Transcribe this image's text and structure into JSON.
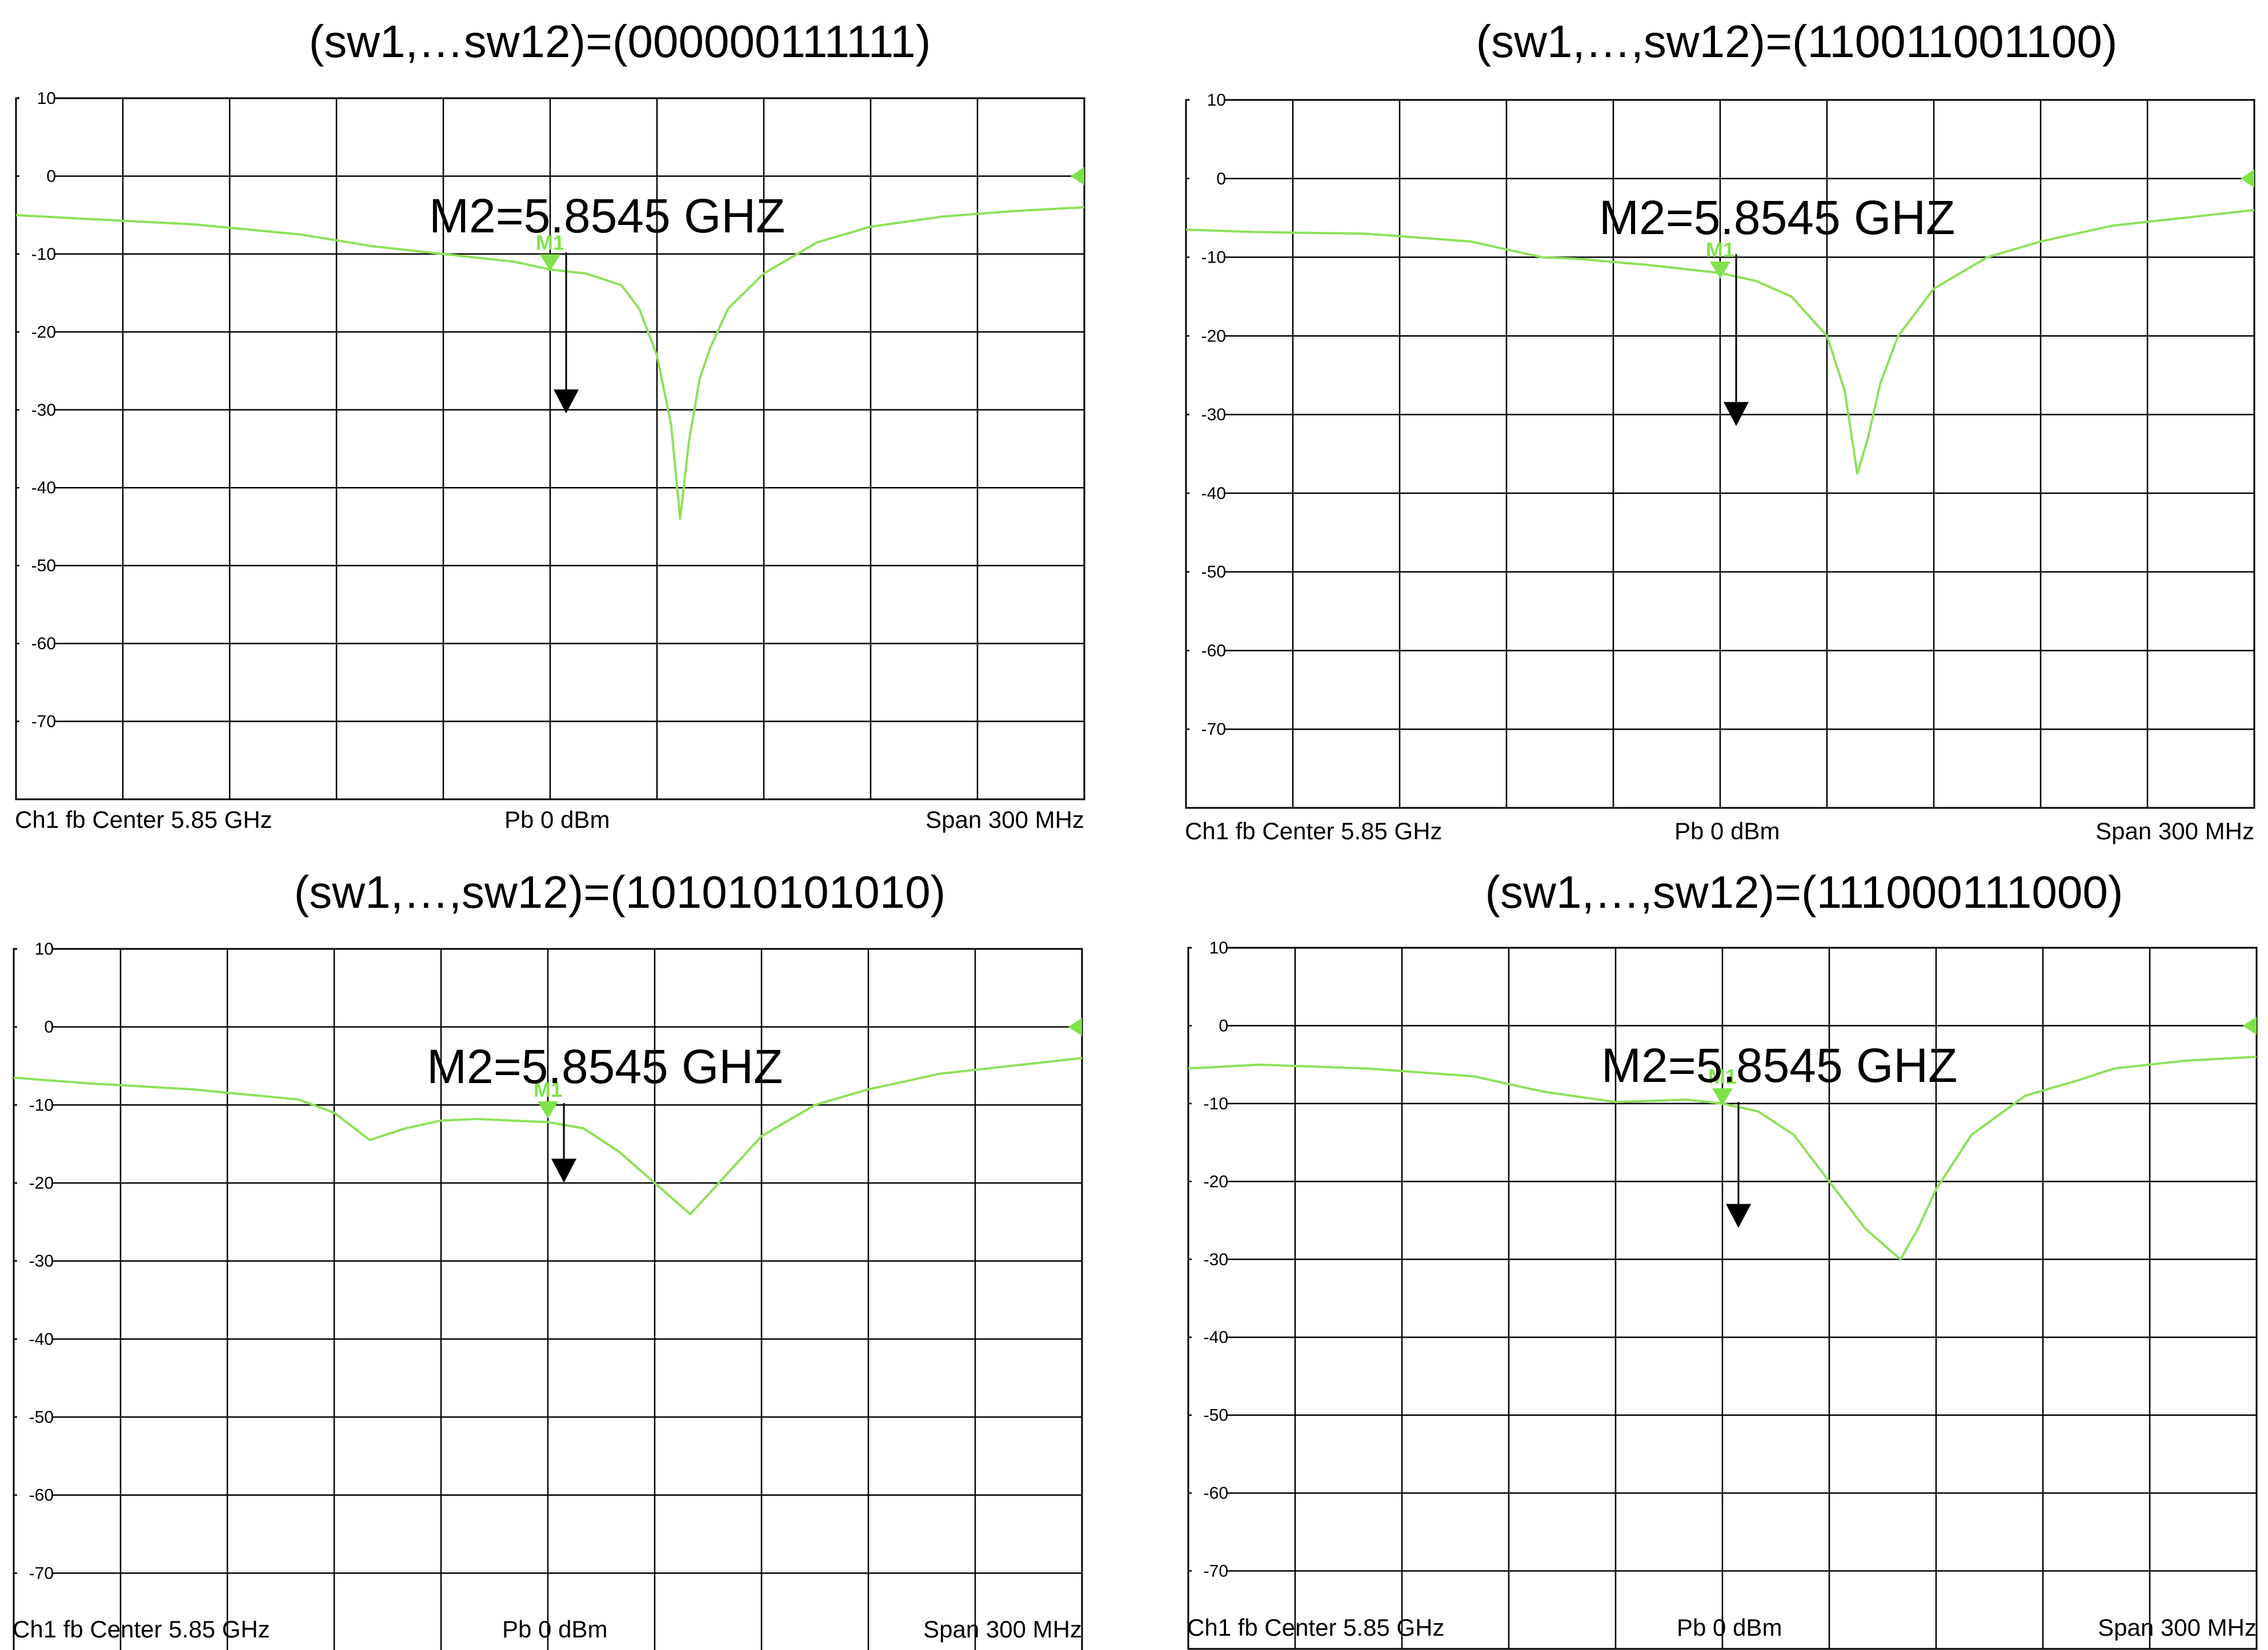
{
  "colors": {
    "trace": "#8ee05a",
    "marker": "#7fe24a",
    "grid": "#000000",
    "annotation": "#000000"
  },
  "chart_data": [
    {
      "type": "line",
      "title": "(sw1,…sw12)=(000000111111)",
      "xlim": [
        5.7,
        6.0
      ],
      "ylim": [
        -80,
        10
      ],
      "yticks": [
        10,
        0,
        -10,
        -20,
        -30,
        -40,
        -50,
        -60,
        -70
      ],
      "grid": true,
      "status": {
        "channel": "Ch1  fb  Center  5.85 GHz",
        "power": "Pb   0 dBm",
        "span": "Span  300 MHz"
      },
      "marker_m1": {
        "label": "M1",
        "x": 5.85,
        "y": -11.5
      },
      "marker_m2": {
        "label": "M2=5.8545 GHZ",
        "x": 5.8545,
        "y": -29
      },
      "series": [
        {
          "x": [
            5.7,
            5.72,
            5.75,
            5.78,
            5.8,
            5.82,
            5.84,
            5.85,
            5.86,
            5.87,
            5.875,
            5.88,
            5.884,
            5.8865,
            5.889,
            5.892,
            5.895,
            5.9,
            5.91,
            5.925,
            5.94,
            5.96,
            5.98,
            6.0
          ],
          "values": [
            -5,
            -5.5,
            -6.2,
            -7.5,
            -9,
            -10,
            -11,
            -12,
            -12.5,
            -14,
            -17,
            -23,
            -32,
            -44,
            -34,
            -26,
            -22,
            -17,
            -12.5,
            -8.5,
            -6.5,
            -5.2,
            -4.5,
            -4
          ]
        }
      ]
    },
    {
      "type": "line",
      "title": "(sw1,…,sw12)=(110011001100)",
      "xlim": [
        5.7,
        6.0
      ],
      "ylim": [
        -80,
        10
      ],
      "yticks": [
        10,
        0,
        -10,
        -20,
        -30,
        -40,
        -50,
        -60,
        -70
      ],
      "grid": true,
      "status": {
        "channel": "Ch1  fb  Center  5.85 GHz",
        "power": "Pb   0 dBm",
        "span": "Span  300 MHz"
      },
      "marker_m1": {
        "label": "M1",
        "x": 5.85,
        "y": -12
      },
      "marker_m2": {
        "label": "M2=5.8545 GHZ",
        "x": 5.8545,
        "y": -30
      },
      "series": [
        {
          "x": [
            5.7,
            5.72,
            5.75,
            5.78,
            5.8,
            5.81,
            5.83,
            5.85,
            5.86,
            5.87,
            5.88,
            5.885,
            5.8885,
            5.8915,
            5.895,
            5.9,
            5.91,
            5.925,
            5.94,
            5.96,
            5.98,
            6.0
          ],
          "values": [
            -6.5,
            -6.8,
            -7,
            -8,
            -10,
            -10.2,
            -11,
            -12,
            -13,
            -15,
            -20,
            -27,
            -37.5,
            -33,
            -26,
            -20,
            -14,
            -10,
            -8,
            -6,
            -5,
            -4
          ]
        }
      ]
    },
    {
      "type": "line",
      "title": "(sw1,…,sw12)=(101010101010)",
      "xlim": [
        5.7,
        6.0
      ],
      "ylim": [
        -80,
        10
      ],
      "yticks": [
        10,
        0,
        -10,
        -20,
        -30,
        -40,
        -50,
        -60,
        -70
      ],
      "grid": true,
      "status": {
        "channel": "Ch1  fb  Center  5.85 GHz",
        "power": "Pb   0 dBm",
        "span": "Span  300 MHz"
      },
      "marker_m1": {
        "label": "M1",
        "x": 5.85,
        "y": -11
      },
      "marker_m2": {
        "label": "M2=5.8545 GHZ",
        "x": 5.8545,
        "y": -18.5
      },
      "series": [
        {
          "x": [
            5.7,
            5.72,
            5.75,
            5.78,
            5.79,
            5.8,
            5.81,
            5.82,
            5.83,
            5.84,
            5.85,
            5.86,
            5.87,
            5.88,
            5.89,
            5.9,
            5.91,
            5.925,
            5.94,
            5.96,
            5.98,
            6.0
          ],
          "values": [
            -6.5,
            -7.2,
            -8,
            -9.3,
            -11,
            -14.5,
            -13,
            -12,
            -11.8,
            -12,
            -12.2,
            -13,
            -16,
            -20,
            -24,
            -19,
            -14,
            -10,
            -8,
            -6,
            -5,
            -4
          ]
        }
      ]
    },
    {
      "type": "line",
      "title": "(sw1,…,sw12)=(111000111000)",
      "xlim": [
        5.7,
        6.0
      ],
      "ylim": [
        -80,
        10
      ],
      "yticks": [
        10,
        0,
        -10,
        -20,
        -30,
        -40,
        -50,
        -60,
        -70
      ],
      "grid": true,
      "status": {
        "channel": "Ch1  fb  Center  5.85 GHz",
        "power": "Pb   0 dBm",
        "span": "Span  300 MHz"
      },
      "marker_m1": {
        "label": "M1",
        "x": 5.85,
        "y": -9.5
      },
      "marker_m2": {
        "label": "M2=5.8545 GHZ",
        "x": 5.8545,
        "y": -24.5
      },
      "series": [
        {
          "x": [
            5.7,
            5.72,
            5.75,
            5.78,
            5.8,
            5.82,
            5.84,
            5.85,
            5.86,
            5.87,
            5.88,
            5.89,
            5.9,
            5.905,
            5.91,
            5.92,
            5.935,
            5.95,
            5.96,
            5.98,
            6.0
          ],
          "values": [
            -5.5,
            -5,
            -5.5,
            -6.5,
            -8.5,
            -9.8,
            -9.5,
            -10,
            -11,
            -14,
            -20,
            -26,
            -30,
            -26,
            -21,
            -14,
            -9,
            -7,
            -5.5,
            -4.5,
            -4
          ]
        }
      ]
    }
  ]
}
